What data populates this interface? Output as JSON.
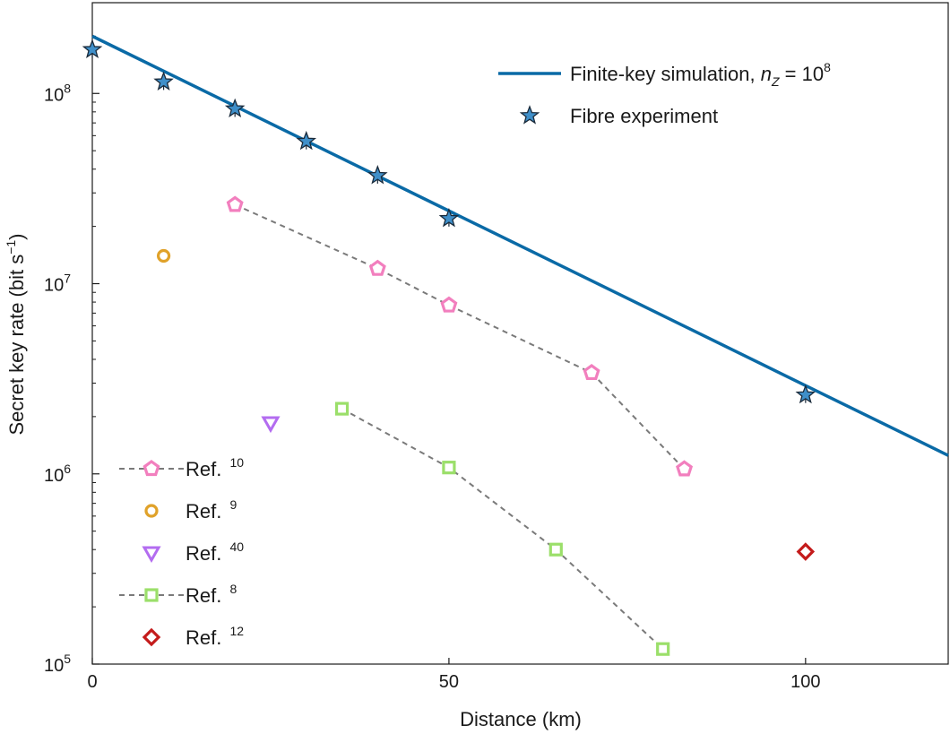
{
  "chart_data": {
    "type": "scatter",
    "xlabel": "Distance (km)",
    "ylabel": "Secret key rate (bit s",
    "ylabel_sup": "−1",
    "ylabel_close": ")",
    "xlim": [
      0,
      120
    ],
    "ylim": [
      100000,
      300000000
    ],
    "yscale": "log",
    "x_ticks": [
      {
        "value": 0,
        "label": "0"
      },
      {
        "value": 50,
        "label": "50"
      },
      {
        "value": 100,
        "label": "100"
      }
    ],
    "y_ticks": [
      {
        "value": 100000,
        "base": "10",
        "exp": "5"
      },
      {
        "value": 1000000,
        "base": "10",
        "exp": "6"
      },
      {
        "value": 10000000,
        "base": "10",
        "exp": "7"
      },
      {
        "value": 100000000,
        "base": "10",
        "exp": "8"
      }
    ],
    "grid": false,
    "series": [
      {
        "name": "Finite-key simulation, n_Z = 10^8",
        "kind": "line",
        "color": "#0a6aa6",
        "x": [
          0,
          120
        ],
        "y": [
          200000000,
          1250000
        ]
      },
      {
        "name": "Fibre experiment",
        "kind": "star",
        "color": "#3f8fc9",
        "x": [
          0,
          10,
          20,
          30,
          40,
          50,
          100
        ],
        "y": [
          170000000,
          115000000,
          83000000,
          56000000,
          37000000,
          22000000,
          2600000
        ]
      },
      {
        "name": "Ref. 10",
        "kind": "pentagon",
        "color": "#f27fbe",
        "dashed": true,
        "x": [
          20,
          40,
          50,
          70,
          83
        ],
        "y": [
          26000000,
          12000000,
          7700000,
          3400000,
          1060000
        ]
      },
      {
        "name": "Ref. 9",
        "kind": "circle",
        "color": "#e0a22a",
        "dashed": false,
        "x": [
          10
        ],
        "y": [
          14000000
        ]
      },
      {
        "name": "Ref. 40",
        "kind": "triangle",
        "color": "#b36cf0",
        "dashed": false,
        "x": [
          25
        ],
        "y": [
          1850000
        ]
      },
      {
        "name": "Ref. 8",
        "kind": "square",
        "color": "#9bdf6a",
        "dashed": true,
        "x": [
          35,
          50,
          65,
          80
        ],
        "y": [
          2200000,
          1080000,
          400000,
          120000
        ]
      },
      {
        "name": "Ref. 12",
        "kind": "diamond",
        "color": "#c41b1b",
        "dashed": false,
        "x": [
          100
        ],
        "y": [
          390000
        ]
      }
    ],
    "legend_top": [
      {
        "kind": "line",
        "label": "Finite-key simulation, ",
        "math_var": "n",
        "math_sub": "Z",
        "math_rest": " = 10",
        "math_sup": "8"
      },
      {
        "kind": "star",
        "label": "Fibre experiment"
      }
    ],
    "legend_top_placement": "top-right",
    "legend_refs": [
      {
        "kind": "pentagon",
        "label": "Ref. ",
        "sup": "10",
        "dashed": true
      },
      {
        "kind": "circle",
        "label": "Ref. ",
        "sup": "9",
        "dashed": false
      },
      {
        "kind": "triangle",
        "label": "Ref. ",
        "sup": "40",
        "dashed": false
      },
      {
        "kind": "square",
        "label": "Ref. ",
        "sup": "8",
        "dashed": true
      },
      {
        "kind": "diamond",
        "label": "Ref. ",
        "sup": "12",
        "dashed": false
      }
    ],
    "legend_refs_placement": "bottom-left"
  }
}
